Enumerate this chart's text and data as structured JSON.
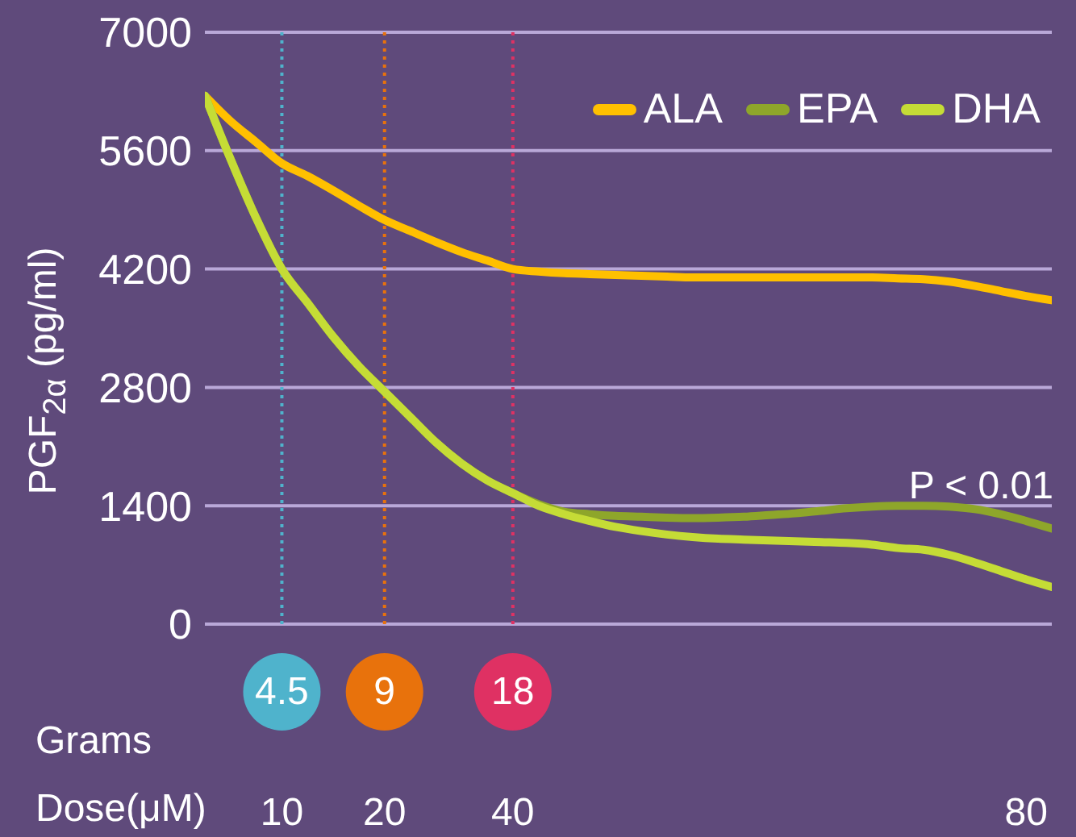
{
  "chart_data": {
    "type": "line",
    "xlabel": "Dose(μM)",
    "ylabel": "PGF$_{2α}$ (pg/ml)",
    "categories": [
      null,
      null,
      null,
      "10",
      null,
      null,
      null,
      "20",
      null,
      null,
      null,
      null,
      "40",
      null,
      null,
      null,
      null,
      null,
      null,
      null,
      null,
      null,
      null,
      null,
      null,
      null,
      null,
      null,
      null,
      null,
      null,
      null,
      "80",
      null
    ],
    "series": [
      {
        "name": "ALA",
        "color": "#ffc000",
        "values": [
          6250,
          5950,
          5700,
          5450,
          5300,
          5130,
          4950,
          4780,
          4650,
          4520,
          4400,
          4300,
          4200,
          4170,
          4150,
          4140,
          4130,
          4120,
          4110,
          4100,
          4100,
          4100,
          4100,
          4100,
          4100,
          4100,
          4100,
          4090,
          4080,
          4050,
          4000,
          3940,
          3880,
          3830
        ]
      },
      {
        "name": "EPA",
        "color": "#8ea62a",
        "values": [
          6250,
          5500,
          4800,
          4200,
          3800,
          3400,
          3050,
          2750,
          2450,
          2150,
          1900,
          1700,
          1550,
          1420,
          1330,
          1300,
          1280,
          1270,
          1260,
          1255,
          1260,
          1270,
          1290,
          1310,
          1340,
          1370,
          1390,
          1400,
          1400,
          1390,
          1360,
          1300,
          1220,
          1130
        ]
      },
      {
        "name": "DHA",
        "color": "#c5dc36",
        "values": [
          6250,
          5500,
          4800,
          4200,
          3800,
          3400,
          3050,
          2750,
          2450,
          2150,
          1900,
          1700,
          1550,
          1400,
          1300,
          1220,
          1150,
          1100,
          1060,
          1030,
          1010,
          1000,
          990,
          980,
          970,
          960,
          940,
          900,
          880,
          820,
          730,
          630,
          530,
          440
        ]
      }
    ],
    "ylim": [
      0,
      7000
    ],
    "yticks": [
      0,
      1400,
      2800,
      4200,
      5600,
      7000
    ],
    "grid": "y",
    "legend": "top right",
    "marker": "none",
    "line_style": "solid",
    "ref_lines": [
      {
        "axis": "x",
        "value": "10",
        "label": "4.5",
        "color": "#4fb3cc",
        "line_style": "dotted"
      },
      {
        "axis": "x",
        "value": "20",
        "label": "9",
        "color": "#e8720c",
        "line_style": "dotted"
      },
      {
        "axis": "x",
        "value": "40",
        "label": "18",
        "color": "#df3163",
        "line_style": "dotted"
      }
    ],
    "annotations": [
      "Grams",
      "P < 0.01"
    ]
  }
}
